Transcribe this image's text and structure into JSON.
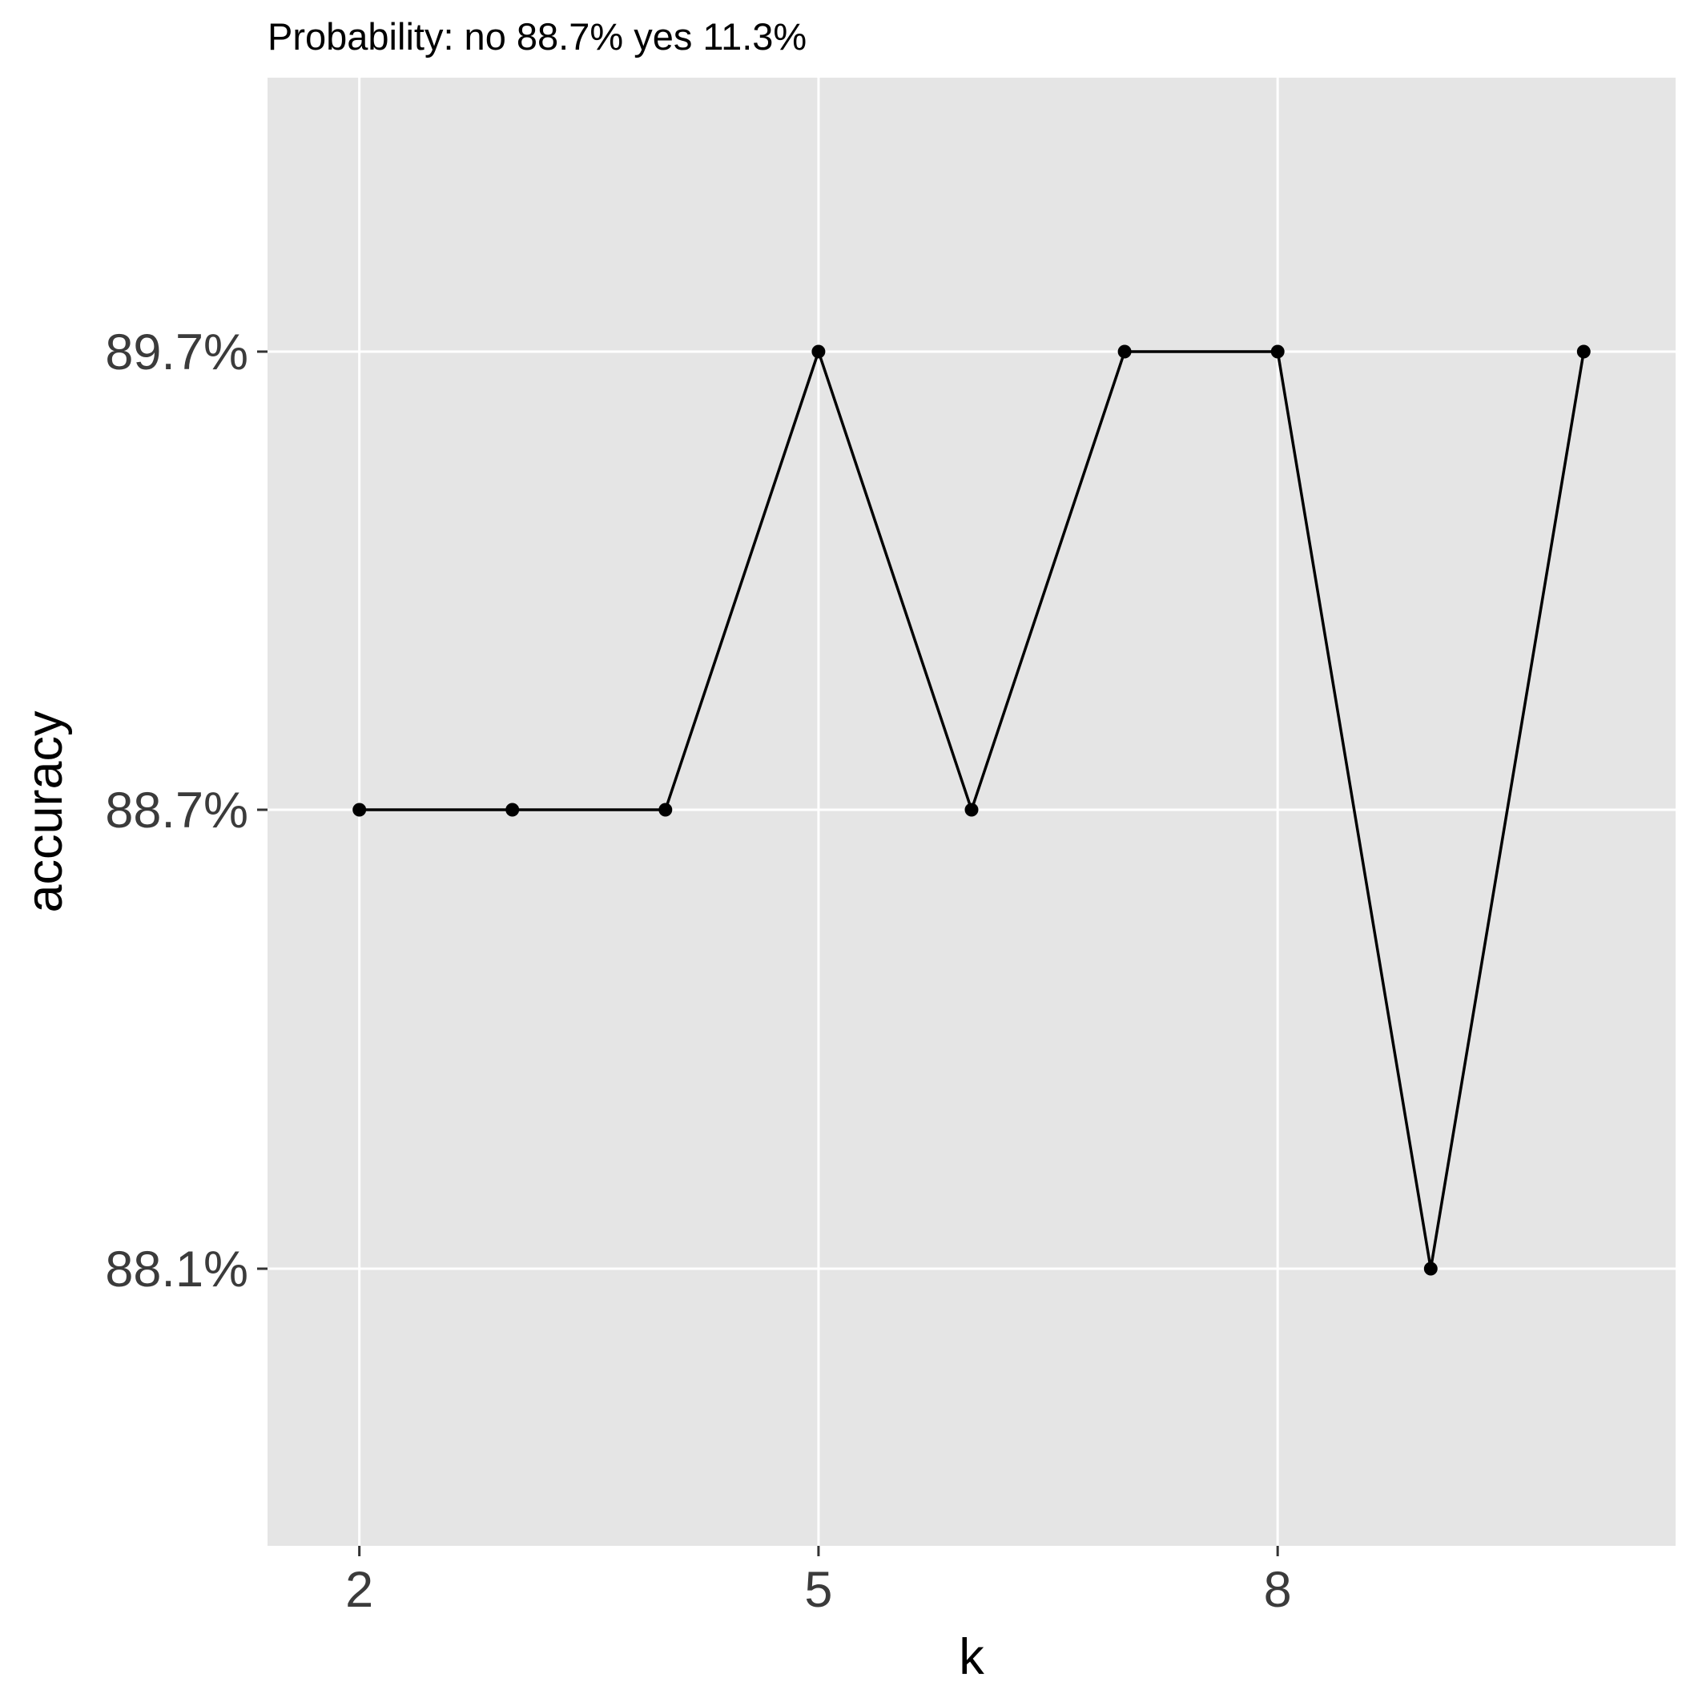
{
  "chart_data": {
    "type": "line",
    "title": "",
    "subtitle": "Probability: no 88.7% yes 11.3%",
    "xlabel": "k",
    "ylabel": "accuracy",
    "x": [
      2,
      3,
      4,
      5,
      6,
      7,
      8,
      9,
      10
    ],
    "series": [
      {
        "values": [
          88.7,
          88.7,
          88.7,
          89.7,
          88.7,
          89.7,
          89.7,
          88.1,
          89.7
        ]
      }
    ],
    "x_ticks": [
      2,
      5,
      8
    ],
    "x_tick_labels": [
      "2",
      "5",
      "8"
    ],
    "y_tick_labels": [
      "88.1%",
      "88.7%",
      "89.7%"
    ],
    "y_scale": "nonlinear (evenly spaced labeled levels)",
    "xlim": [
      1.4,
      10.6
    ],
    "grid": true,
    "legend": "none",
    "colors": {
      "panel_background": "#e5e5e5",
      "grid": "#ffffff",
      "line": "#000000",
      "points": "#000000",
      "tick_label": "#3b3b3b"
    }
  }
}
